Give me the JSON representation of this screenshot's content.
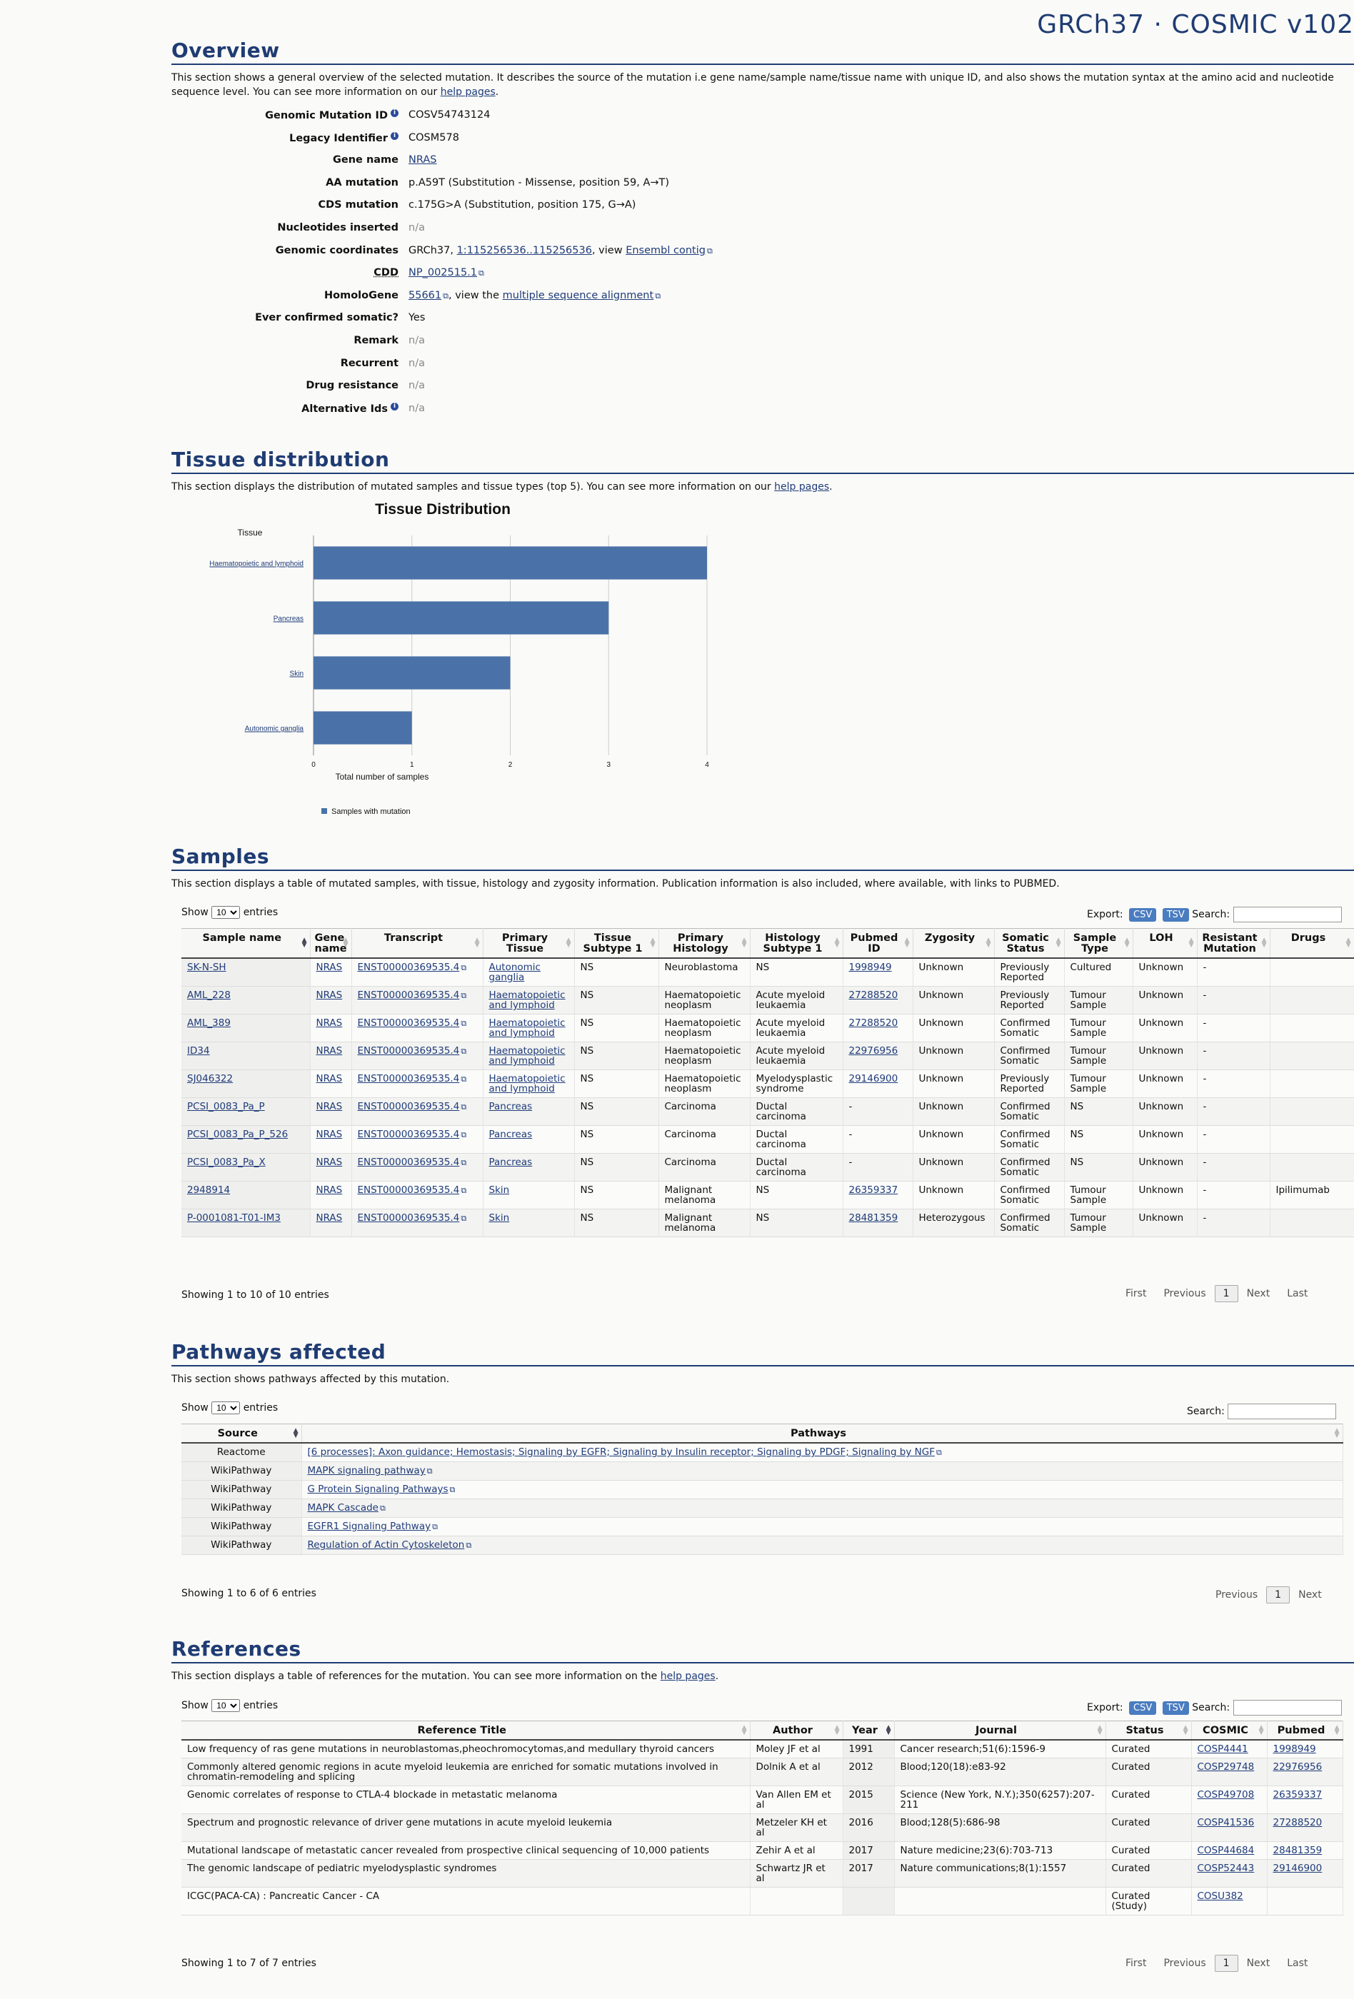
{
  "brand": "GRCh37 · COSMIC v102",
  "overview": {
    "title": "Overview",
    "desc_pre": "This section shows a general overview of the selected mutation. It describes the source of the mutation i.e gene name/sample name/tissue name with unique ID, and also shows the mutation syntax at the amino acid and nucleotide sequence level. You can see more information on our ",
    "desc_link": "help pages",
    "desc_post": ".",
    "fields": {
      "genomic_mutation_id": {
        "label": "Genomic Mutation ID",
        "value": "COSV54743124"
      },
      "legacy_identifier": {
        "label": "Legacy Identifier",
        "value": "COSM578"
      },
      "gene_name": {
        "label": "Gene name",
        "value": "NRAS"
      },
      "aa_mutation": {
        "label": "AA mutation",
        "value": "p.A59T (Substitution - Missense, position 59, A→T)"
      },
      "cds_mutation": {
        "label": "CDS mutation",
        "value": "c.175G>A (Substitution, position 175, G→A)"
      },
      "nucleotides_inserted": {
        "label": "Nucleotides inserted",
        "value": "n/a"
      },
      "genomic_coordinates": {
        "label": "Genomic coordinates",
        "prefix": "GRCh37, ",
        "coord": "1:115256536..115256536",
        "mid": ", view ",
        "link": "Ensembl contig"
      },
      "cdd": {
        "label": "CDD",
        "value": "NP_002515.1"
      },
      "homologene": {
        "label": "HomoloGene",
        "value": "55661",
        "mid": ", view the ",
        "link": "multiple sequence alignment"
      },
      "ever_confirmed": {
        "label": "Ever confirmed somatic?",
        "value": "Yes"
      },
      "remark": {
        "label": "Remark",
        "value": "n/a"
      },
      "recurrent": {
        "label": "Recurrent",
        "value": "n/a"
      },
      "drug_resistance": {
        "label": "Drug resistance",
        "value": "n/a"
      },
      "alternative_ids": {
        "label": "Alternative Ids",
        "value": "n/a"
      }
    }
  },
  "tissue": {
    "title": "Tissue distribution",
    "desc_pre": "This section displays the distribution of mutated samples and tissue types (top 5). You can see more information on our ",
    "desc_link": "help pages",
    "desc_post": "."
  },
  "chart_data": {
    "type": "bar",
    "orientation": "horizontal",
    "title": "Tissue Distribution",
    "ylabel": "Tissue",
    "xlabel": "Total number of samples",
    "categories": [
      "Haematopoietic and lymphoid",
      "Pancreas",
      "Skin",
      "Autonomic ganglia"
    ],
    "series": [
      {
        "name": "Samples with mutation",
        "values": [
          4,
          3,
          2,
          1
        ],
        "color": "#4a72a8"
      }
    ],
    "xlim": [
      0,
      4
    ],
    "xticks": [
      "0",
      "1",
      "2",
      "3",
      "4"
    ],
    "grid": true,
    "legend": "bottom-left"
  },
  "samples": {
    "title": "Samples",
    "desc": "This section displays a table of mutated samples, with tissue, histology and zygosity information. Publication information is also included, where available, with links to PUBMED.",
    "show": "Show",
    "entries": "entries",
    "page_size": "10",
    "export": "Export:",
    "csv": "CSV",
    "tsv": "TSV",
    "search": "Search:",
    "columns": [
      "Sample name",
      "Gene name",
      "Transcript",
      "Primary Tissue",
      "Tissue Subtype 1",
      "Primary Histology",
      "Histology Subtype 1",
      "Pubmed ID",
      "Zygosity",
      "Somatic Status",
      "Sample Type",
      "LOH",
      "Resistant Mutation",
      "Drugs"
    ],
    "rows": [
      [
        "SK-N-SH",
        "NRAS",
        "ENST00000369535.4",
        "Autonomic ganglia",
        "NS",
        "Neuroblastoma",
        "NS",
        "1998949",
        "Unknown",
        "Previously Reported",
        "Cultured",
        "Unknown",
        "-",
        ""
      ],
      [
        "AML_228",
        "NRAS",
        "ENST00000369535.4",
        "Haematopoietic and lymphoid",
        "NS",
        "Haematopoietic neoplasm",
        "Acute myeloid leukaemia",
        "27288520",
        "Unknown",
        "Previously Reported",
        "Tumour Sample",
        "Unknown",
        "-",
        ""
      ],
      [
        "AML_389",
        "NRAS",
        "ENST00000369535.4",
        "Haematopoietic and lymphoid",
        "NS",
        "Haematopoietic neoplasm",
        "Acute myeloid leukaemia",
        "27288520",
        "Unknown",
        "Confirmed Somatic",
        "Tumour Sample",
        "Unknown",
        "-",
        ""
      ],
      [
        "ID34",
        "NRAS",
        "ENST00000369535.4",
        "Haematopoietic and lymphoid",
        "NS",
        "Haematopoietic neoplasm",
        "Acute myeloid leukaemia",
        "22976956",
        "Unknown",
        "Confirmed Somatic",
        "Tumour Sample",
        "Unknown",
        "-",
        ""
      ],
      [
        "SJ046322",
        "NRAS",
        "ENST00000369535.4",
        "Haematopoietic and lymphoid",
        "NS",
        "Haematopoietic neoplasm",
        "Myelodysplastic syndrome",
        "29146900",
        "Unknown",
        "Previously Reported",
        "Tumour Sample",
        "Unknown",
        "-",
        ""
      ],
      [
        "PCSI_0083_Pa_P",
        "NRAS",
        "ENST00000369535.4",
        "Pancreas",
        "NS",
        "Carcinoma",
        "Ductal carcinoma",
        "-",
        "Unknown",
        "Confirmed Somatic",
        "NS",
        "Unknown",
        "-",
        ""
      ],
      [
        "PCSI_0083_Pa_P_526",
        "NRAS",
        "ENST00000369535.4",
        "Pancreas",
        "NS",
        "Carcinoma",
        "Ductal carcinoma",
        "-",
        "Unknown",
        "Confirmed Somatic",
        "NS",
        "Unknown",
        "-",
        ""
      ],
      [
        "PCSI_0083_Pa_X",
        "NRAS",
        "ENST00000369535.4",
        "Pancreas",
        "NS",
        "Carcinoma",
        "Ductal carcinoma",
        "-",
        "Unknown",
        "Confirmed Somatic",
        "NS",
        "Unknown",
        "-",
        ""
      ],
      [
        "2948914",
        "NRAS",
        "ENST00000369535.4",
        "Skin",
        "NS",
        "Malignant melanoma",
        "NS",
        "26359337",
        "Unknown",
        "Confirmed Somatic",
        "Tumour Sample",
        "Unknown",
        "-",
        "Ipilimumab"
      ],
      [
        "P-0001081-T01-IM3",
        "NRAS",
        "ENST00000369535.4",
        "Skin",
        "NS",
        "Malignant melanoma",
        "NS",
        "28481359",
        "Heterozygous",
        "Confirmed Somatic",
        "Tumour Sample",
        "Unknown",
        "-",
        ""
      ]
    ],
    "info": "Showing 1 to 10 of 10 entries",
    "pager": {
      "first": "First",
      "previous": "Previous",
      "page": "1",
      "next": "Next",
      "last": "Last"
    }
  },
  "pathways": {
    "title": "Pathways affected",
    "desc": "This section shows pathways affected by this mutation.",
    "show": "Show",
    "entries": "entries",
    "page_size": "10",
    "search": "Search:",
    "columns": [
      "Source",
      "Pathways"
    ],
    "rows": [
      [
        "Reactome",
        "[6 processes]: Axon guidance; Hemostasis; Signaling by EGFR; Signaling by Insulin receptor; Signaling by PDGF; Signaling by NGF"
      ],
      [
        "WikiPathway",
        "MAPK signaling pathway"
      ],
      [
        "WikiPathway",
        "G Protein Signaling Pathways"
      ],
      [
        "WikiPathway",
        "MAPK Cascade"
      ],
      [
        "WikiPathway",
        "EGFR1 Signaling Pathway"
      ],
      [
        "WikiPathway",
        "Regulation of Actin Cytoskeleton"
      ]
    ],
    "info": "Showing 1 to 6 of 6 entries",
    "pager": {
      "previous": "Previous",
      "page": "1",
      "next": "Next"
    }
  },
  "references": {
    "title": "References",
    "desc_pre": "This section displays a table of references for the mutation. You can see more information on the ",
    "desc_link": "help pages",
    "desc_post": ".",
    "show": "Show",
    "entries": "entries",
    "page_size": "10",
    "export": "Export:",
    "csv": "CSV",
    "tsv": "TSV",
    "search": "Search:",
    "columns": [
      "Reference Title",
      "Author",
      "Year",
      "Journal",
      "Status",
      "COSMIC",
      "Pubmed"
    ],
    "rows": [
      [
        "Low frequency of ras gene mutations in neuroblastomas,pheochromocytomas,and medullary thyroid cancers",
        "Moley JF et al",
        "1991",
        "Cancer research;51(6):1596-9",
        "Curated",
        "COSP4441",
        "1998949"
      ],
      [
        "Commonly altered genomic regions in acute myeloid leukemia are enriched for somatic mutations involved in chromatin-remodeling and splicing",
        "Dolnik A et al",
        "2012",
        "Blood;120(18):e83-92",
        "Curated",
        "COSP29748",
        "22976956"
      ],
      [
        "Genomic correlates of response to CTLA-4 blockade in metastatic melanoma",
        "Van Allen EM et al",
        "2015",
        "Science (New York, N.Y.);350(6257):207-211",
        "Curated",
        "COSP49708",
        "26359337"
      ],
      [
        "Spectrum and prognostic relevance of driver gene mutations in acute myeloid leukemia",
        "Metzeler KH et al",
        "2016",
        "Blood;128(5):686-98",
        "Curated",
        "COSP41536",
        "27288520"
      ],
      [
        "Mutational landscape of metastatic cancer revealed from prospective clinical sequencing of 10,000 patients",
        "Zehir A et al",
        "2017",
        "Nature medicine;23(6):703-713",
        "Curated",
        "COSP44684",
        "28481359"
      ],
      [
        "The genomic landscape of pediatric myelodysplastic syndromes",
        "Schwartz JR et al",
        "2017",
        "Nature communications;8(1):1557",
        "Curated",
        "COSP52443",
        "29146900"
      ],
      [
        "ICGC(PACA-CA) : Pancreatic Cancer - CA",
        "",
        "",
        "",
        "Curated (Study)",
        "COSU382",
        ""
      ]
    ],
    "info": "Showing 1 to 7 of 7 entries",
    "pager": {
      "first": "First",
      "previous": "Previous",
      "page": "1",
      "next": "Next",
      "last": "Last"
    }
  }
}
